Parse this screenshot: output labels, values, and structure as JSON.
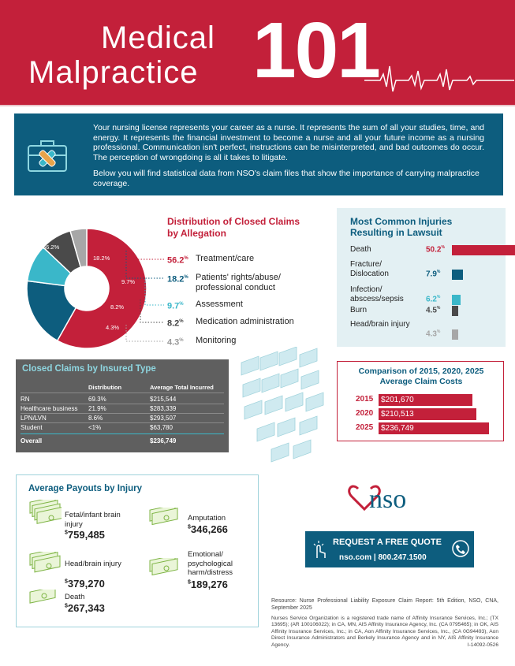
{
  "header": {
    "title_line1": "Medical",
    "title_line2": "Malpractice",
    "title_number": "101",
    "colors": {
      "brand_red": "#c3203a",
      "brand_blue": "#0d5d7e",
      "accent_cyan": "#3ab7c9"
    }
  },
  "intro": {
    "icon": "first-aid-briefcase-icon",
    "paragraph1": "Your nursing license represents your career as a nurse. It represents the sum of all your studies, time, and energy. It represents the financial investment to become a nurse and all your future income as a nursing professional. Communication isn't perfect, instructions can be misinterpreted, and bad outcomes do occur. The perception of wrongdoing is all it takes to litigate.",
    "paragraph2": "Below you will find statistical data from NSO's claim files that show the importance of carrying malpractice coverage."
  },
  "chart_data": [
    {
      "type": "pie",
      "title": "Distribution of Closed Claims by Allegation",
      "unit": "%",
      "slices": [
        {
          "label": "Treatment/care",
          "value": 56.2,
          "color": "#c3203a"
        },
        {
          "label": "Patients' rights/abuse/ professional conduct",
          "value": 18.2,
          "color": "#0d5d7e"
        },
        {
          "label": "Assessment",
          "value": 9.7,
          "color": "#3ab7c9"
        },
        {
          "label": "Medication administration",
          "value": 8.2,
          "color": "#4a4a4a"
        },
        {
          "label": "Monitoring",
          "value": 4.3,
          "color": "#a7a7a7"
        }
      ]
    },
    {
      "type": "bar",
      "title": "Most Common Injuries Resulting in Lawsuit",
      "unit": "%",
      "categories": [
        "Death",
        "Fracture/ Dislocation",
        "Infection/ abscess/sepsis",
        "Burn",
        "Head/brain injury"
      ],
      "values": [
        50.2,
        7.9,
        6.2,
        4.5,
        4.3
      ],
      "colors": [
        "#c3203a",
        "#0d5d7e",
        "#3ab7c9",
        "#4a4a4a",
        "#a7a7a7"
      ]
    },
    {
      "type": "bar",
      "title": "Comparison of 2015, 2020, 2025 Average Claim Costs",
      "categories": [
        "2015",
        "2020",
        "2025"
      ],
      "values": [
        201670,
        210513,
        236749
      ],
      "value_labels": [
        "$201,670",
        "$210,513",
        "$236,749"
      ]
    }
  ],
  "closed_claims": {
    "title": "Closed Claims by Insured Type",
    "headers": [
      "",
      "Distribution",
      "Average Total Incurred"
    ],
    "rows": [
      [
        "RN",
        "69.3%",
        "$215,544"
      ],
      [
        "Healthcare business",
        "21.9%",
        "$283,339"
      ],
      [
        "LPN/LVN",
        "8.6%",
        "$293,507"
      ],
      [
        "Student",
        "<1%",
        "$63,780"
      ]
    ],
    "overall": [
      "Overall",
      "",
      "$236,749"
    ]
  },
  "payouts": {
    "title": "Average Payouts by Injury",
    "items": [
      {
        "label": "Fetal/infant brain injury",
        "value": "759,485"
      },
      {
        "label": "Amputation",
        "value": "346,266"
      },
      {
        "label": "Head/brain injury",
        "value": "379,270"
      },
      {
        "label": "Emotional/ psychological harm/distress",
        "value": "189,276"
      },
      {
        "label": "Death",
        "value": "267,343"
      }
    ],
    "currency": "$"
  },
  "nso": {
    "logo_text": "nso",
    "cta_title": "REQUEST A FREE QUOTE",
    "cta_contact": "nso.com  |  800.247.1500"
  },
  "footer": {
    "resource": "Resource: Nurse Professional Liability Exposure Claim Report: 5th Edition, NSO, CNA, September 2025",
    "legal": "Nurses Service Organization is a registered trade name of Affinity Insurance Services, Inc.; (TX 13695); (AR 100106022); in CA, MN, AIS Affinity Insurance Agency, Inc. (CA 0795465); in OK, AIS Affinity Insurance Services, Inc.; in CA, Aon Affinity Insurance Services, Inc., (CA 0G94493), Aon Direct Insurance Administrators and Berkely Insurance Agency and in NY, AIS Affinity Insurance Agency.",
    "code": "I-14092-0526"
  }
}
